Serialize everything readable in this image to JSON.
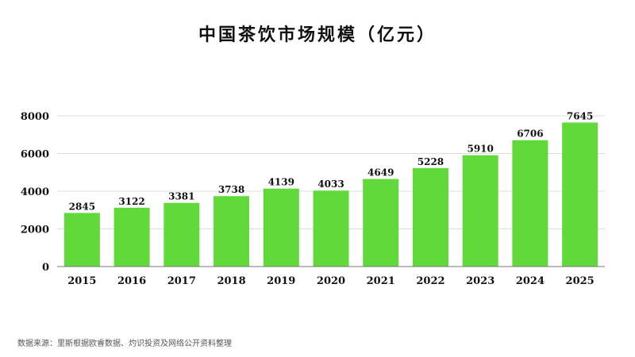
{
  "chart_data": {
    "type": "bar",
    "title": "中国茶饮市场规模（亿元）",
    "categories": [
      "2015",
      "2016",
      "2017",
      "2018",
      "2019",
      "2020",
      "2021",
      "2022",
      "2023",
      "2024",
      "2025"
    ],
    "values": [
      2845,
      3122,
      3381,
      3738,
      4139,
      4033,
      4649,
      5228,
      5910,
      6706,
      7645
    ],
    "data_labels": [
      "2845",
      "3122",
      "3381",
      "3738",
      "4139",
      "4033",
      "4649",
      "5228",
      "5910",
      "6706",
      "7645"
    ],
    "xlabel": "",
    "ylabel": "",
    "ylim": [
      0,
      8000
    ],
    "yticks": [
      "0",
      "2000",
      "4000",
      "6000",
      "8000"
    ],
    "grid": true,
    "legend": "none",
    "bar_color": "#62d93a"
  },
  "source": "数据来源：里斯根据欧睿数据、灼识投资及网络公开资料整理"
}
